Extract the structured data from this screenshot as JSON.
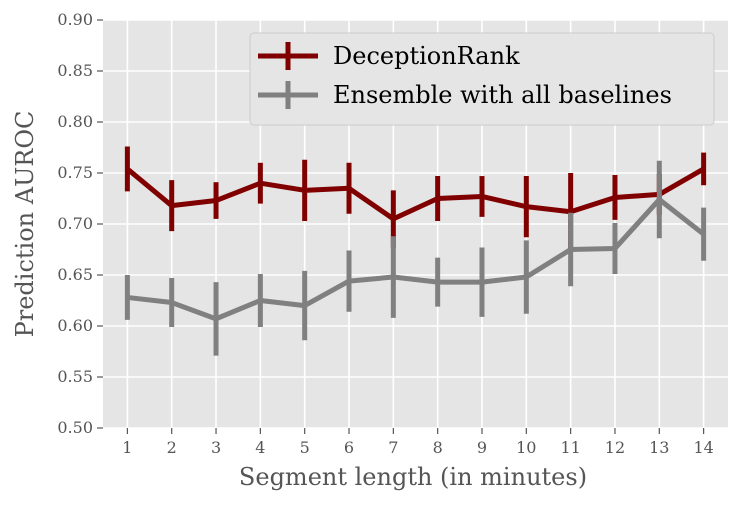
{
  "chart_data": {
    "type": "line",
    "xlabel": "Segment length (in minutes)",
    "ylabel": "Prediction AUROC",
    "x": [
      1,
      2,
      3,
      4,
      5,
      6,
      7,
      8,
      9,
      10,
      11,
      12,
      13,
      14
    ],
    "xlim": [
      0.45,
      14.55
    ],
    "ylim": [
      0.5,
      0.9
    ],
    "yticks": [
      "0.50",
      "0.55",
      "0.60",
      "0.65",
      "0.70",
      "0.75",
      "0.80",
      "0.85",
      "0.90"
    ],
    "xticks": [
      "1",
      "2",
      "3",
      "4",
      "5",
      "6",
      "7",
      "8",
      "9",
      "10",
      "11",
      "12",
      "13",
      "14"
    ],
    "grid": true,
    "legend_position": "top-right",
    "series": [
      {
        "name": "DeceptionRank",
        "color": "#800000",
        "values": [
          0.754,
          0.718,
          0.723,
          0.74,
          0.733,
          0.735,
          0.705,
          0.725,
          0.727,
          0.717,
          0.712,
          0.726,
          0.729,
          0.754
        ],
        "error": [
          0.022,
          0.025,
          0.018,
          0.02,
          0.03,
          0.025,
          0.028,
          0.022,
          0.02,
          0.03,
          0.038,
          0.022,
          0.02,
          0.016
        ]
      },
      {
        "name": "Ensemble with all baselines",
        "color": "#808080",
        "values": [
          0.628,
          0.623,
          0.607,
          0.625,
          0.62,
          0.644,
          0.648,
          0.643,
          0.643,
          0.648,
          0.675,
          0.676,
          0.724,
          0.69
        ],
        "error": [
          0.022,
          0.024,
          0.036,
          0.026,
          0.034,
          0.03,
          0.04,
          0.024,
          0.034,
          0.036,
          0.036,
          0.025,
          0.038,
          0.026
        ]
      }
    ]
  }
}
